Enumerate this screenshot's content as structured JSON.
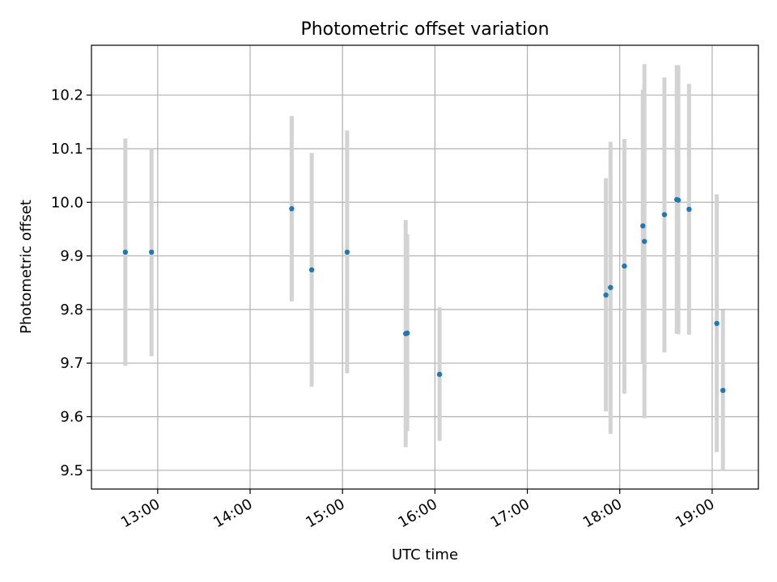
{
  "chart_data": {
    "type": "scatter",
    "title": "Photometric offset variation",
    "xlabel": "UTC time",
    "ylabel": "Photometric offset",
    "x_ticks": [
      "13:00",
      "14:00",
      "15:00",
      "16:00",
      "17:00",
      "18:00",
      "19:00"
    ],
    "y_ticks": [
      "9.5",
      "9.6",
      "9.7",
      "9.8",
      "9.9",
      "10.0",
      "10.1",
      "10.2"
    ],
    "xlim": [
      "12:17",
      "19:30"
    ],
    "ylim": [
      9.465,
      10.293
    ],
    "grid": true,
    "errorbar_color": "#d3d3d3",
    "marker_color": "#1f77b4",
    "series": [
      {
        "points": [
          {
            "x": "12:39",
            "y": 9.907,
            "lo": 9.695,
            "hi": 10.119
          },
          {
            "x": "12:56",
            "y": 9.907,
            "lo": 9.713,
            "hi": 10.101
          },
          {
            "x": "14:27",
            "y": 9.988,
            "lo": 9.815,
            "hi": 10.161
          },
          {
            "x": "14:40",
            "y": 9.874,
            "lo": 9.656,
            "hi": 10.092
          },
          {
            "x": "15:03",
            "y": 9.907,
            "lo": 9.681,
            "hi": 10.134
          },
          {
            "x": "15:41",
            "y": 9.755,
            "lo": 9.543,
            "hi": 9.967
          },
          {
            "x": "15:42",
            "y": 9.756,
            "lo": 9.573,
            "hi": 9.94
          },
          {
            "x": "16:03",
            "y": 9.679,
            "lo": 9.555,
            "hi": 9.804
          },
          {
            "x": "17:51",
            "y": 9.827,
            "lo": 9.61,
            "hi": 10.045
          },
          {
            "x": "17:54",
            "y": 9.841,
            "lo": 9.568,
            "hi": 10.113
          },
          {
            "x": "18:03",
            "y": 9.881,
            "lo": 9.643,
            "hi": 10.118
          },
          {
            "x": "18:15",
            "y": 9.956,
            "lo": 9.701,
            "hi": 10.21
          },
          {
            "x": "18:16",
            "y": 9.927,
            "lo": 9.597,
            "hi": 10.258
          },
          {
            "x": "18:29",
            "y": 9.977,
            "lo": 9.72,
            "hi": 10.233
          },
          {
            "x": "18:37",
            "y": 10.005,
            "lo": 9.755,
            "hi": 10.256
          },
          {
            "x": "18:38",
            "y": 10.004,
            "lo": 9.754,
            "hi": 10.256
          },
          {
            "x": "18:45",
            "y": 9.987,
            "lo": 9.753,
            "hi": 10.221
          },
          {
            "x": "19:03",
            "y": 9.774,
            "lo": 9.534,
            "hi": 10.015
          },
          {
            "x": "19:07",
            "y": 9.649,
            "lo": 9.5,
            "hi": 9.799
          }
        ]
      }
    ]
  }
}
